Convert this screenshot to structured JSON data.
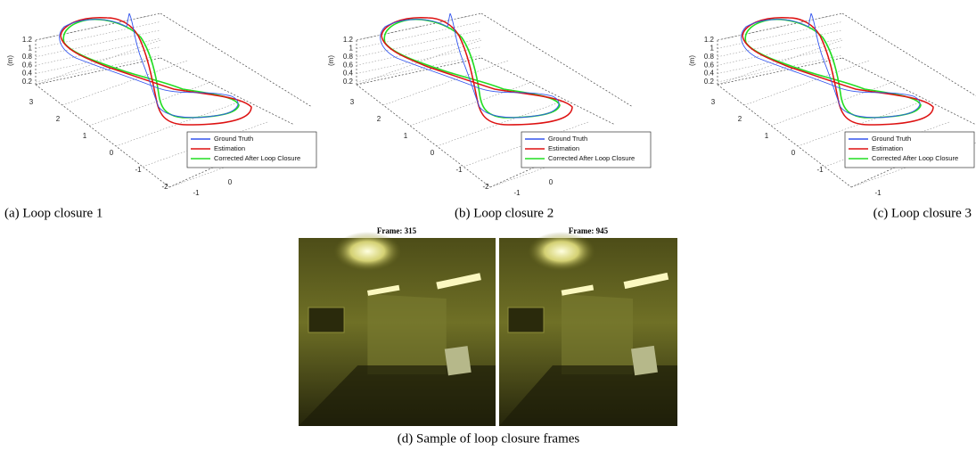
{
  "figures": [
    {
      "caption": "(a) Loop closure 1",
      "axis_label": "(m)",
      "z_ticks": [
        "1.2",
        "1",
        "0.8",
        "0.6",
        "0.4",
        "0.2"
      ],
      "y_ticks": [
        "3",
        "2",
        "1",
        "0",
        "-1",
        "-2"
      ],
      "x_ticks": [
        "-1",
        "0"
      ],
      "legend": [
        "Ground Truth",
        "Estimation",
        "Corrected After Loop Closure"
      ]
    },
    {
      "caption": "(b) Loop closure 2",
      "axis_label": "(m)",
      "z_ticks": [
        "1.2",
        "1",
        "0.8",
        "0.6",
        "0.4",
        "0.2"
      ],
      "y_ticks": [
        "3",
        "2",
        "1",
        "0",
        "-1",
        "-2"
      ],
      "x_ticks": [
        "-1",
        "0"
      ],
      "legend": [
        "Ground Truth",
        "Estimation",
        "Corrected After Loop Closure"
      ]
    },
    {
      "caption": "(c) Loop closure 3",
      "axis_label": "(m)",
      "z_ticks": [
        "1.2",
        "1",
        "0.8",
        "0.6",
        "0.4",
        "0.2"
      ],
      "y_ticks": [
        "3",
        "2",
        "1",
        "0",
        "-1"
      ],
      "x_ticks": [
        "-1"
      ],
      "legend": [
        "Ground Truth",
        "Estimation",
        "Corrected After Loop Closure"
      ]
    }
  ],
  "frames": [
    {
      "title": "Frame: 315"
    },
    {
      "title": "Frame: 945"
    }
  ],
  "caption": "(d) Sample of loop closure frames"
}
